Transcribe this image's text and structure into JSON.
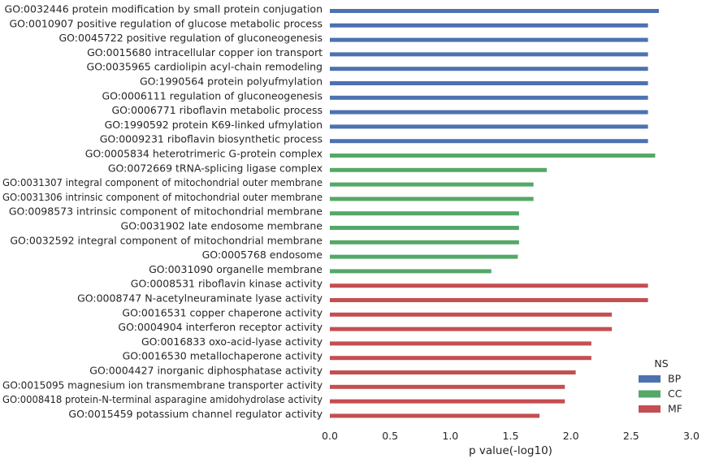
{
  "chart_data": {
    "type": "bar",
    "orientation": "horizontal",
    "title": "",
    "xlabel": "p value(-log10)",
    "ylabel": "",
    "xlim": [
      0.0,
      3.0
    ],
    "xticks": [
      "0.0",
      "0.5",
      "1.0",
      "1.5",
      "2.0",
      "2.5",
      "3.0"
    ],
    "grid": false,
    "legend_title": "NS",
    "legend_position": "bottom-right",
    "series": [
      {
        "name": "BP",
        "color": "#4c72b0"
      },
      {
        "name": "CC",
        "color": "#55a868"
      },
      {
        "name": "MF",
        "color": "#c44e52"
      }
    ],
    "categories": [
      {
        "label": "GO:0032446 protein modification by small protein conjugation",
        "value": 2.73,
        "ns": "BP"
      },
      {
        "label": "GO:0010907 positive regulation of glucose metabolic process",
        "value": 2.64,
        "ns": "BP"
      },
      {
        "label": "GO:0045722 positive regulation of gluconeogenesis",
        "value": 2.64,
        "ns": "BP"
      },
      {
        "label": "GO:0015680 intracellular copper ion transport",
        "value": 2.64,
        "ns": "BP"
      },
      {
        "label": "GO:0035965 cardiolipin acyl-chain remodeling",
        "value": 2.64,
        "ns": "BP"
      },
      {
        "label": "GO:1990564 protein polyufmylation",
        "value": 2.64,
        "ns": "BP"
      },
      {
        "label": "GO:0006111 regulation of gluconeogenesis",
        "value": 2.64,
        "ns": "BP"
      },
      {
        "label": "GO:0006771 riboflavin metabolic process",
        "value": 2.64,
        "ns": "BP"
      },
      {
        "label": "GO:1990592 protein K69-linked ufmylation",
        "value": 2.64,
        "ns": "BP"
      },
      {
        "label": "GO:0009231 riboflavin biosynthetic process",
        "value": 2.64,
        "ns": "BP"
      },
      {
        "label": "GO:0005834 heterotrimeric G-protein complex",
        "value": 2.7,
        "ns": "CC"
      },
      {
        "label": "GO:0072669 tRNA-splicing ligase complex",
        "value": 1.8,
        "ns": "CC"
      },
      {
        "label": "GO:0031307 integral component of mitochondrial outer membrane",
        "value": 1.69,
        "ns": "CC"
      },
      {
        "label": "GO:0031306 intrinsic component of mitochondrial outer membrane",
        "value": 1.69,
        "ns": "CC"
      },
      {
        "label": "GO:0098573 intrinsic component of mitochondrial membrane",
        "value": 1.57,
        "ns": "CC"
      },
      {
        "label": "GO:0031902 late endosome membrane",
        "value": 1.57,
        "ns": "CC"
      },
      {
        "label": "GO:0032592 integral component of mitochondrial membrane",
        "value": 1.57,
        "ns": "CC"
      },
      {
        "label": "GO:0005768 endosome",
        "value": 1.56,
        "ns": "CC"
      },
      {
        "label": "GO:0031090 organelle membrane",
        "value": 1.34,
        "ns": "CC"
      },
      {
        "label": "GO:0008531 riboflavin kinase activity",
        "value": 2.64,
        "ns": "MF"
      },
      {
        "label": "GO:0008747 N-acetylneuraminate lyase activity",
        "value": 2.64,
        "ns": "MF"
      },
      {
        "label": "GO:0016531 copper chaperone activity",
        "value": 2.34,
        "ns": "MF"
      },
      {
        "label": "GO:0004904 interferon receptor activity",
        "value": 2.34,
        "ns": "MF"
      },
      {
        "label": "GO:0016833 oxo-acid-lyase activity",
        "value": 2.17,
        "ns": "MF"
      },
      {
        "label": "GO:0016530 metallochaperone activity",
        "value": 2.17,
        "ns": "MF"
      },
      {
        "label": "GO:0004427 inorganic diphosphatase activity",
        "value": 2.04,
        "ns": "MF"
      },
      {
        "label": "GO:0015095 magnesium ion transmembrane transporter activity",
        "value": 1.95,
        "ns": "MF"
      },
      {
        "label": "GO:0008418 protein-N-terminal asparagine amidohydrolase activity",
        "value": 1.95,
        "ns": "MF"
      },
      {
        "label": "GO:0015459 potassium channel regulator activity",
        "value": 1.74,
        "ns": "MF"
      }
    ]
  }
}
